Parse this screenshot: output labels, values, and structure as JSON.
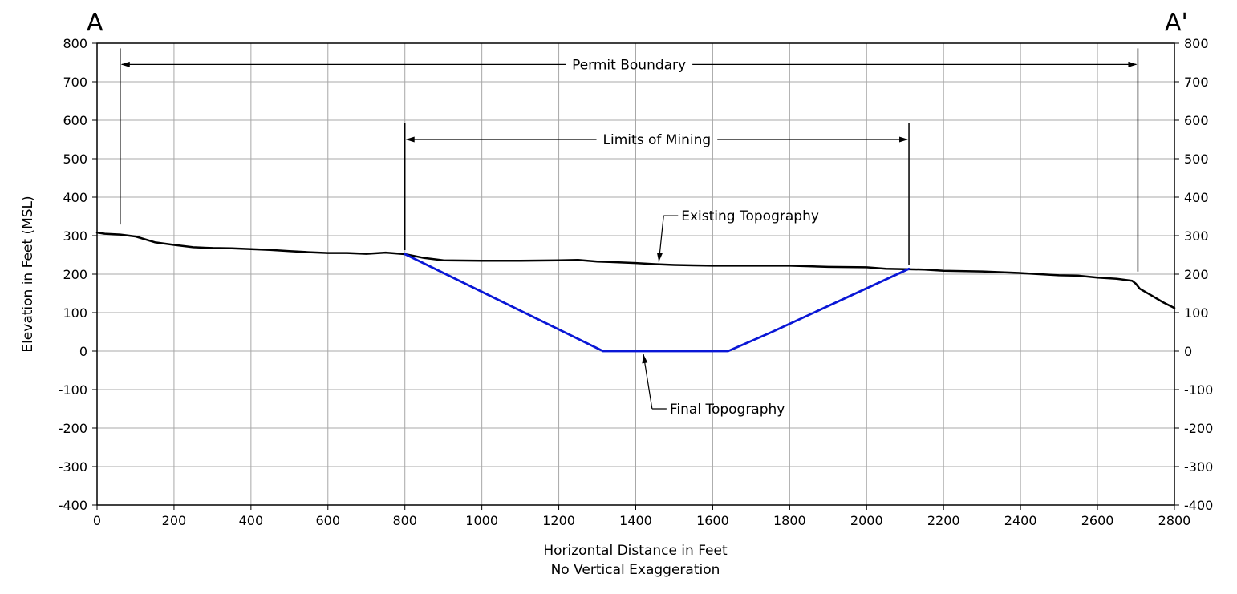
{
  "chart_data": {
    "type": "line",
    "section_start_label": "A",
    "section_end_label": "A'",
    "xlabel": "Horizontal Distance in Feet",
    "xlabel_note": "No Vertical Exaggeration",
    "ylabel": "Elevation in Feet (MSL)",
    "xlim": [
      0,
      2800
    ],
    "ylim": [
      -400,
      800
    ],
    "x_ticks": [
      0,
      200,
      400,
      600,
      800,
      1000,
      1200,
      1400,
      1600,
      1800,
      2000,
      2200,
      2400,
      2600,
      2800
    ],
    "y_ticks": [
      -400,
      -300,
      -200,
      -100,
      0,
      100,
      200,
      300,
      400,
      500,
      600,
      700,
      800
    ],
    "grid": true,
    "y_axis_both_sides": true,
    "series": [
      {
        "name": "Existing Topography",
        "color": "#000000",
        "x": [
          0,
          20,
          60,
          100,
          150,
          200,
          250,
          300,
          350,
          400,
          450,
          500,
          550,
          600,
          650,
          700,
          750,
          790,
          800,
          850,
          900,
          1000,
          1100,
          1200,
          1250,
          1300,
          1350,
          1400,
          1450,
          1500,
          1550,
          1600,
          1700,
          1800,
          1900,
          2000,
          2050,
          2100,
          2150,
          2200,
          2300,
          2400,
          2500,
          2550,
          2600,
          2650,
          2690,
          2700,
          2710,
          2740,
          2770,
          2800
        ],
        "y": [
          308,
          305,
          303,
          298,
          283,
          276,
          270,
          268,
          267,
          265,
          263,
          260,
          257,
          255,
          255,
          253,
          256,
          253,
          252,
          242,
          236,
          235,
          235,
          236,
          237,
          233,
          231,
          229,
          226,
          224,
          223,
          222,
          222,
          222,
          219,
          218,
          214,
          213,
          212,
          209,
          207,
          203,
          197,
          196,
          191,
          188,
          183,
          175,
          162,
          145,
          127,
          112
        ]
      },
      {
        "name": "Final Topography",
        "color": "#0a17d6",
        "x": [
          800,
          1315,
          1640,
          1750,
          2110
        ],
        "y": [
          252,
          0,
          0,
          48,
          214
        ]
      }
    ],
    "annotations": [
      {
        "text": "Permit Boundary",
        "x_start": 60,
        "x_end": 2705,
        "y": 745
      },
      {
        "text": "Limits of Mining",
        "x_start": 800,
        "x_end": 2110,
        "y": 550
      },
      {
        "text": "Existing Topography",
        "label_x": 1510,
        "label_y": 352,
        "point_x": 1460,
        "point_y": 226
      },
      {
        "text": "Final Topography",
        "label_x": 1480,
        "label_y": -150,
        "point_x": 1420,
        "point_y": 0
      }
    ]
  }
}
